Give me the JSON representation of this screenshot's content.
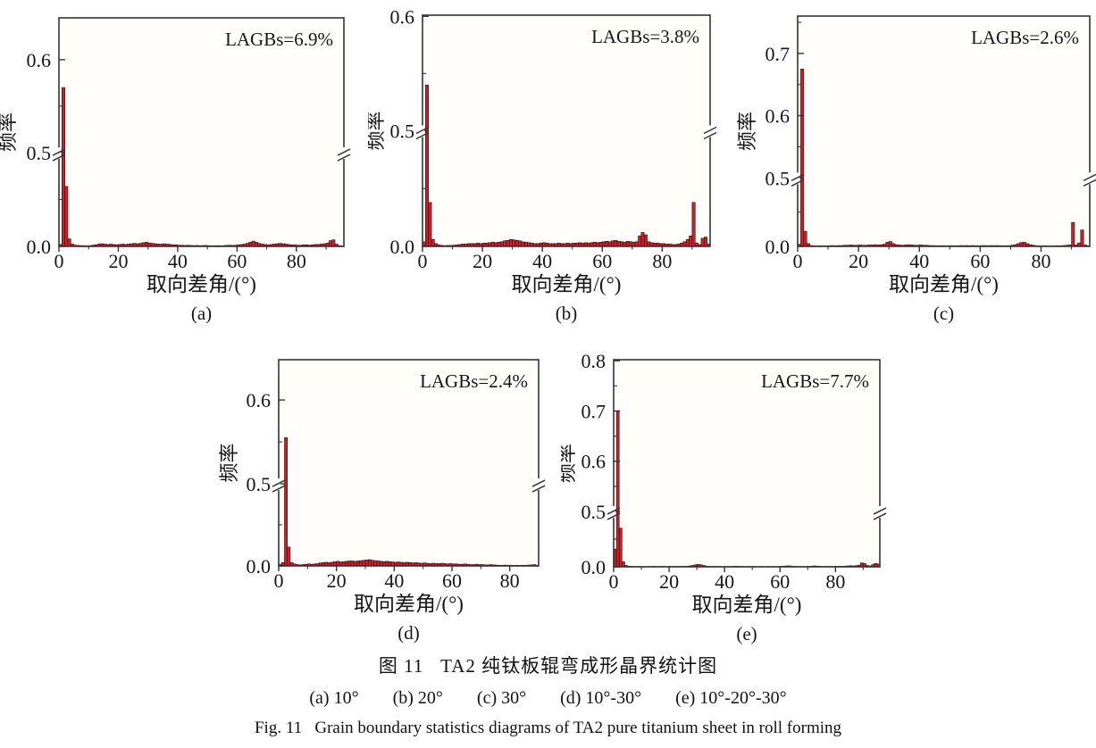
{
  "figure": {
    "caption_cn": "图 11   TA2 纯钛板辊弯成形晶界统计图",
    "caption_items": [
      "(a) 10°",
      "(b) 20°",
      "(c) 30°",
      "(d) 10°-30°",
      "(e) 10°-20°-30°"
    ],
    "caption_en": "Fig. 11   Grain boundary statistics diagrams of TA2 pure titanium sheet in roll forming"
  },
  "style": {
    "bar_color": "#c3242b",
    "bar_edge_color": "#33090c",
    "axis_color": "#333333",
    "plot_bg": "#fffefb"
  },
  "chart_data": [
    {
      "type": "bar",
      "panel": "(a)",
      "annotation": "LAGBs=6.9%",
      "xlabel": "取向差角/(°)",
      "ylabel": "频率",
      "x_range": [
        0,
        96
      ],
      "bin_width": 1,
      "x_ticks": [
        0,
        20,
        40,
        60,
        80
      ],
      "x_minor_ticks": [
        10,
        30,
        50,
        70,
        90
      ],
      "y_major_ticks": [
        0.0,
        0.5,
        0.6
      ],
      "y_minor_ticks": [
        0.25,
        0.55
      ],
      "axis_break": {
        "value": 0.5,
        "break_frac": 0.41,
        "top_value": 0.645
      },
      "values": [
        0.01,
        0.57,
        0.32,
        0.04,
        0.012,
        0.006,
        0.005,
        0.004,
        0.004,
        0.003,
        0.004,
        0.006,
        0.008,
        0.012,
        0.014,
        0.012,
        0.01,
        0.012,
        0.01,
        0.008,
        0.01,
        0.012,
        0.01,
        0.012,
        0.014,
        0.016,
        0.014,
        0.016,
        0.02,
        0.022,
        0.018,
        0.016,
        0.014,
        0.012,
        0.012,
        0.014,
        0.012,
        0.01,
        0.008,
        0.008,
        0.006,
        0.006,
        0.005,
        0.006,
        0.005,
        0.004,
        0.005,
        0.004,
        0.004,
        0.005,
        0.004,
        0.003,
        0.003,
        0.004,
        0.003,
        0.004,
        0.005,
        0.006,
        0.005,
        0.006,
        0.008,
        0.01,
        0.012,
        0.016,
        0.022,
        0.028,
        0.022,
        0.016,
        0.012,
        0.01,
        0.008,
        0.01,
        0.012,
        0.014,
        0.016,
        0.014,
        0.012,
        0.01,
        0.008,
        0.008,
        0.006,
        0.006,
        0.008,
        0.008,
        0.006,
        0.008,
        0.01,
        0.01,
        0.012,
        0.014,
        0.018,
        0.03,
        0.035,
        0.012,
        0.004,
        0.002
      ]
    },
    {
      "type": "bar",
      "panel": "(b)",
      "annotation": "LAGBs=3.8%",
      "xlabel": "取向差角/(°)",
      "ylabel": "频率",
      "x_range": [
        0,
        96
      ],
      "bin_width": 1,
      "x_ticks": [
        0,
        20,
        40,
        60,
        80
      ],
      "x_minor_ticks": [
        10,
        30,
        50,
        70,
        90
      ],
      "y_major_ticks": [
        0.0,
        0.5,
        0.6
      ],
      "y_minor_ticks": [
        0.25,
        0.55
      ],
      "axis_break": {
        "value": 0.5,
        "break_frac": 0.5,
        "top_value": 0.601
      },
      "values": [
        0.02,
        0.54,
        0.19,
        0.03,
        0.012,
        0.006,
        0.004,
        0.003,
        0.004,
        0.004,
        0.005,
        0.006,
        0.008,
        0.01,
        0.01,
        0.012,
        0.012,
        0.012,
        0.014,
        0.012,
        0.014,
        0.014,
        0.016,
        0.018,
        0.016,
        0.018,
        0.02,
        0.024,
        0.026,
        0.03,
        0.028,
        0.026,
        0.024,
        0.02,
        0.018,
        0.016,
        0.014,
        0.012,
        0.012,
        0.014,
        0.016,
        0.014,
        0.012,
        0.012,
        0.012,
        0.014,
        0.012,
        0.012,
        0.014,
        0.012,
        0.014,
        0.014,
        0.016,
        0.014,
        0.016,
        0.014,
        0.016,
        0.018,
        0.016,
        0.018,
        0.02,
        0.022,
        0.02,
        0.024,
        0.026,
        0.022,
        0.02,
        0.018,
        0.022,
        0.02,
        0.018,
        0.02,
        0.045,
        0.06,
        0.05,
        0.02,
        0.016,
        0.014,
        0.014,
        0.012,
        0.012,
        0.01,
        0.01,
        0.008,
        0.008,
        0.01,
        0.014,
        0.02,
        0.03,
        0.045,
        0.19,
        0.015,
        0.008,
        0.035,
        0.04,
        0.01
      ]
    },
    {
      "type": "bar",
      "panel": "(c)",
      "annotation": "LAGBs=2.6%",
      "xlabel": "取向差角/(°)",
      "ylabel": "频率",
      "x_range": [
        0,
        96
      ],
      "bin_width": 1,
      "x_ticks": [
        0,
        20,
        40,
        60,
        80
      ],
      "x_minor_ticks": [
        10,
        30,
        50,
        70,
        90
      ],
      "y_major_ticks": [
        0.0,
        0.5,
        0.6,
        0.7
      ],
      "y_minor_ticks": [
        0.25,
        0.55,
        0.65,
        0.75
      ],
      "axis_break": {
        "value": 0.5,
        "break_frac": 0.297,
        "top_value": 0.76
      },
      "values": [
        0.015,
        0.675,
        0.11,
        0.02,
        0.006,
        0.004,
        0.003,
        0.004,
        0.003,
        0.004,
        0.005,
        0.006,
        0.005,
        0.006,
        0.006,
        0.008,
        0.008,
        0.01,
        0.008,
        0.008,
        0.01,
        0.008,
        0.008,
        0.01,
        0.01,
        0.012,
        0.01,
        0.012,
        0.016,
        0.03,
        0.035,
        0.02,
        0.012,
        0.01,
        0.008,
        0.01,
        0.012,
        0.01,
        0.008,
        0.008,
        0.01,
        0.008,
        0.008,
        0.006,
        0.006,
        0.005,
        0.004,
        0.005,
        0.004,
        0.004,
        0.005,
        0.004,
        0.004,
        0.006,
        0.005,
        0.006,
        0.005,
        0.006,
        0.005,
        0.004,
        0.005,
        0.006,
        0.005,
        0.006,
        0.005,
        0.006,
        0.005,
        0.004,
        0.004,
        0.005,
        0.008,
        0.012,
        0.02,
        0.028,
        0.03,
        0.02,
        0.012,
        0.008,
        0.004,
        0.003,
        0.003,
        0.004,
        0.003,
        0.003,
        0.004,
        0.004,
        0.004,
        0.006,
        0.008,
        0.01,
        0.175,
        0.01,
        0.025,
        0.12,
        0.01,
        0.003
      ]
    },
    {
      "type": "bar",
      "panel": "(d)",
      "annotation": "LAGBs=2.4%",
      "xlabel": "取向差角/(°)",
      "ylabel": "频率",
      "x_range": [
        0,
        90
      ],
      "bin_width": 1,
      "x_ticks": [
        0,
        20,
        40,
        60,
        80
      ],
      "x_minor_ticks": [
        10,
        30,
        50,
        70
      ],
      "y_major_ticks": [
        0.0,
        0.5,
        0.6
      ],
      "y_minor_ticks": [
        0.25,
        0.55
      ],
      "axis_break": {
        "value": 0.5,
        "break_frac": 0.398,
        "top_value": 0.648
      },
      "values": [
        0.01,
        0.02,
        0.555,
        0.115,
        0.02,
        0.012,
        0.008,
        0.006,
        0.008,
        0.01,
        0.012,
        0.01,
        0.012,
        0.014,
        0.018,
        0.02,
        0.022,
        0.02,
        0.022,
        0.026,
        0.028,
        0.024,
        0.026,
        0.028,
        0.03,
        0.03,
        0.028,
        0.03,
        0.032,
        0.034,
        0.036,
        0.038,
        0.034,
        0.032,
        0.03,
        0.028,
        0.026,
        0.028,
        0.026,
        0.024,
        0.022,
        0.024,
        0.022,
        0.02,
        0.022,
        0.02,
        0.018,
        0.02,
        0.018,
        0.016,
        0.018,
        0.016,
        0.014,
        0.016,
        0.014,
        0.014,
        0.016,
        0.014,
        0.012,
        0.014,
        0.012,
        0.012,
        0.01,
        0.01,
        0.012,
        0.01,
        0.008,
        0.008,
        0.01,
        0.008,
        0.008,
        0.006,
        0.006,
        0.008,
        0.006,
        0.005,
        0.004,
        0.004,
        0.005,
        0.004,
        0.004,
        0.003,
        0.004,
        0.003,
        0.004,
        0.004,
        0.005,
        0.006,
        0.008,
        0.004
      ]
    },
    {
      "type": "bar",
      "panel": "(e)",
      "annotation": "LAGBs=7.7%",
      "xlabel": "取向差角/(°)",
      "ylabel": "频率",
      "x_range": [
        0,
        96
      ],
      "bin_width": 1,
      "x_ticks": [
        0,
        20,
        40,
        60,
        80
      ],
      "x_minor_ticks": [
        10,
        30,
        50,
        70,
        90
      ],
      "y_major_ticks": [
        0.0,
        0.5,
        0.6,
        0.7,
        0.8
      ],
      "y_minor_ticks": [
        0.25,
        0.55,
        0.65,
        0.75
      ],
      "axis_break": {
        "value": 0.5,
        "break_frac": 0.267,
        "top_value": 0.802
      },
      "values": [
        0.16,
        0.7,
        0.35,
        0.045,
        0.012,
        0.005,
        0.004,
        0.003,
        0.003,
        0.002,
        0.003,
        0.002,
        0.003,
        0.003,
        0.004,
        0.003,
        0.003,
        0.004,
        0.003,
        0.003,
        0.003,
        0.003,
        0.004,
        0.003,
        0.004,
        0.004,
        0.005,
        0.008,
        0.012,
        0.018,
        0.022,
        0.018,
        0.012,
        0.006,
        0.004,
        0.004,
        0.003,
        0.003,
        0.003,
        0.002,
        0.003,
        0.003,
        0.003,
        0.005,
        0.006,
        0.004,
        0.003,
        0.002,
        0.003,
        0.002,
        0.003,
        0.002,
        0.002,
        0.003,
        0.002,
        0.003,
        0.002,
        0.003,
        0.002,
        0.003,
        0.004,
        0.006,
        0.008,
        0.008,
        0.006,
        0.004,
        0.003,
        0.003,
        0.002,
        0.003,
        0.004,
        0.006,
        0.008,
        0.006,
        0.004,
        0.003,
        0.003,
        0.004,
        0.003,
        0.003,
        0.004,
        0.004,
        0.005,
        0.006,
        0.008,
        0.01,
        0.008,
        0.01,
        0.015,
        0.035,
        0.03,
        0.012,
        0.008,
        0.02,
        0.03,
        0.025
      ]
    }
  ]
}
